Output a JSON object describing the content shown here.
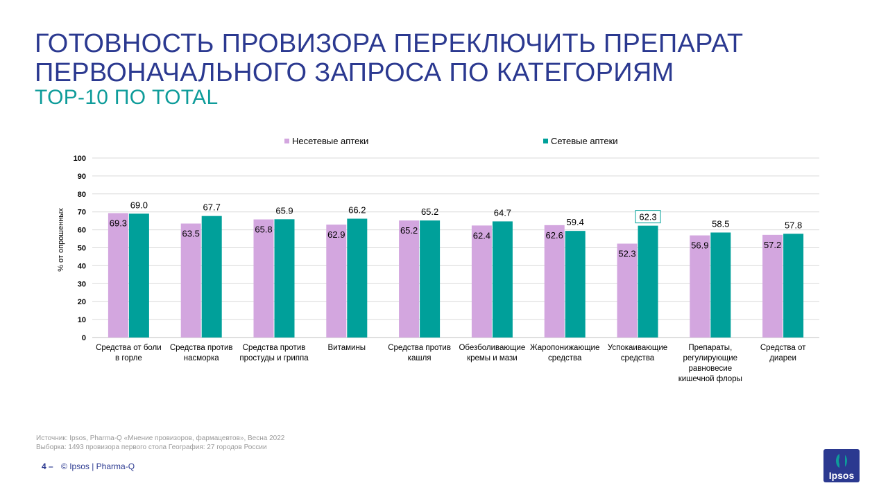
{
  "slide": {
    "title_line1": "ГОТОВНОСТЬ ПРОВИЗОРА ПЕРЕКЛЮЧИТЬ ПРЕПАРАТ",
    "title_line2": "ПЕРВОНАЧАЛЬНОГО ЗАПРОСА ПО КАТЕГОРИЯМ",
    "subtitle": "TOP-10 ПО TOTAL",
    "source_line1": "Источник: Ipsos, Pharma-Q «Мнение провизоров, фармацевтов», Весна 2022",
    "source_line2": "Выборка: 1493 провизора первого стола  География: 27 городов России",
    "page_number": "4 –",
    "copyright": "© Ipsos | Pharma-Q",
    "logo_text": "Ipsos"
  },
  "colors": {
    "title": "#2b3990",
    "subtitle": "#0e9c9a",
    "non_chain": "#d3a6df",
    "chain": "#00a09a",
    "grid": "#d9d9d9"
  },
  "chart_data": {
    "type": "bar",
    "ylabel": "% от опрошенных",
    "ylim": [
      0,
      100
    ],
    "yticks": [
      0,
      10,
      20,
      30,
      40,
      50,
      60,
      70,
      80,
      90,
      100
    ],
    "grid": true,
    "legend_position": "top",
    "categories": [
      [
        "Средства от боли",
        "в горле"
      ],
      [
        "Средства против",
        "насморка"
      ],
      [
        "Средства против",
        "простуды и гриппа"
      ],
      [
        "Витамины"
      ],
      [
        "Средства против",
        "кашля"
      ],
      [
        "Обезболивающие",
        "кремы и мази"
      ],
      [
        "Жаропонижающие",
        "средства"
      ],
      [
        "Успокаивающие",
        "средства"
      ],
      [
        "Препараты,",
        "регулирующие",
        "равновесие",
        "кишечной флоры"
      ],
      [
        "Средства от",
        "диареи"
      ]
    ],
    "series": [
      {
        "name": "Несетевые аптеки",
        "color": "#d3a6df",
        "values": [
          69.3,
          63.5,
          65.8,
          62.9,
          65.2,
          62.4,
          62.6,
          52.3,
          56.9,
          57.2
        ],
        "labels": [
          "69.3",
          "63.5",
          "65.8",
          "62.9",
          "65.2",
          "62.4",
          "62.6",
          "52.3",
          "56.9",
          "57.2"
        ]
      },
      {
        "name": "Сетевые аптеки",
        "color": "#00a09a",
        "values": [
          69.0,
          67.7,
          65.9,
          66.2,
          65.2,
          64.7,
          59.4,
          62.3,
          58.5,
          57.8
        ],
        "labels": [
          "69.0",
          "67.7",
          "65.9",
          "66.2",
          "65.2",
          "64.7",
          "59.4",
          "62.3",
          "58.5",
          "57.8"
        ]
      }
    ],
    "highlighted_label": {
      "series": 1,
      "index": 7
    }
  }
}
